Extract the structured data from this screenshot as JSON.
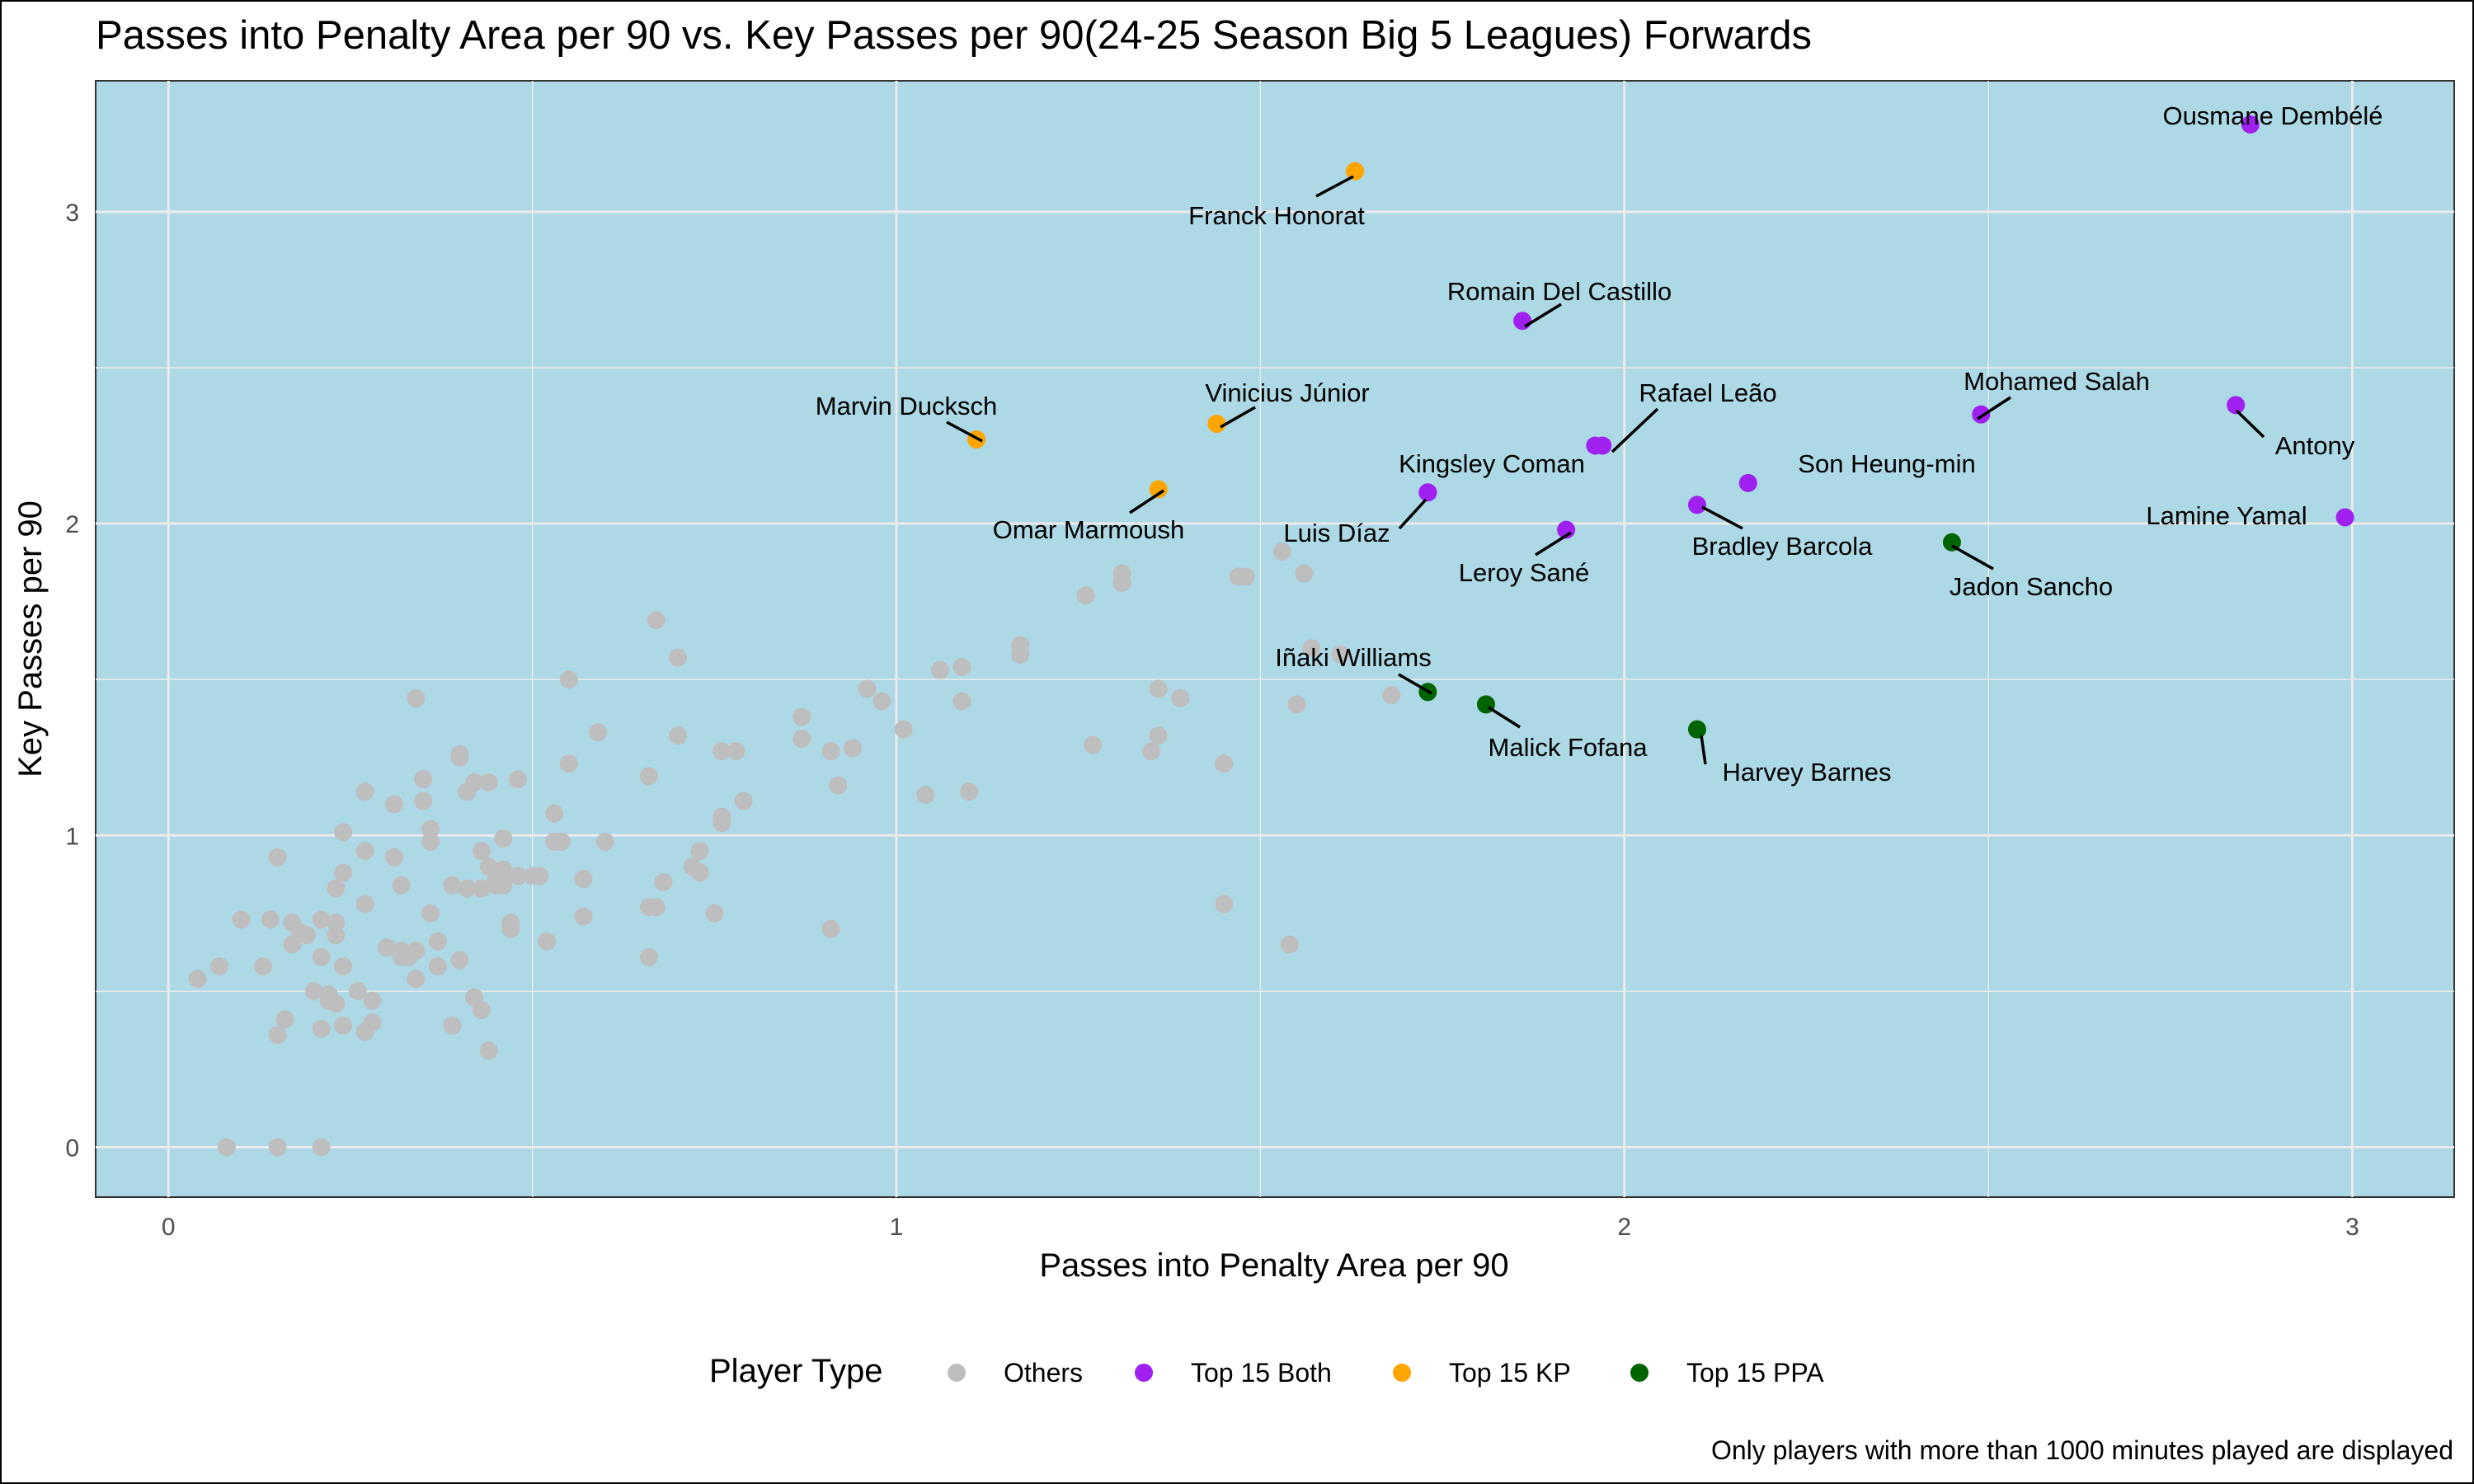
{
  "chart_data": {
    "type": "scatter",
    "title": "Passes into Penalty Area per 90 vs. Key Passes per 90(24-25 Season Big 5 Leagues) Forwards",
    "xlabel": "Passes into Penalty Area per 90",
    "ylabel": "Key Passes per 90",
    "xlim": [
      -0.1,
      3.14
    ],
    "ylim": [
      -0.16,
      3.42
    ],
    "x_ticks": [
      0,
      1,
      2,
      3
    ],
    "y_ticks": [
      0,
      1,
      2,
      3
    ],
    "grid": true,
    "panel_background": "#add8e6",
    "legend": {
      "title": "Player Type",
      "position": "bottom",
      "entries": [
        {
          "label": "Others",
          "color": "#bebebe"
        },
        {
          "label": "Top 15 Both",
          "color": "#a020f0"
        },
        {
          "label": "Top 15 KP",
          "color": "#ffa500"
        },
        {
          "label": "Top 15 PPA",
          "color": "#006400"
        }
      ]
    },
    "caption": "Only players with more than 1000 minutes played are displayed",
    "highlighted": [
      {
        "name": "Ousmane Dembélé",
        "x": 2.86,
        "y": 3.28,
        "group": "Top 15 Both"
      },
      {
        "name": "Franck Honorat",
        "x": 1.63,
        "y": 3.13,
        "group": "Top 15 KP"
      },
      {
        "name": "Romain Del Castillo",
        "x": 1.86,
        "y": 2.65,
        "group": "Top 15 Both"
      },
      {
        "name": "Marvin Ducksch",
        "x": 1.11,
        "y": 2.27,
        "group": "Top 15 KP"
      },
      {
        "name": "Vinicius Júnior",
        "x": 1.44,
        "y": 2.32,
        "group": "Top 15 KP"
      },
      {
        "name": "Rafael Leão",
        "x": 1.97,
        "y": 2.25,
        "group": "Top 15 Both"
      },
      {
        "name": "Mohamed Salah",
        "x": 2.49,
        "y": 2.35,
        "group": "Top 15 Both"
      },
      {
        "name": "Antony",
        "x": 2.84,
        "y": 2.38,
        "group": "Top 15 Both"
      },
      {
        "name": "Kingsley Coman",
        "x": 1.73,
        "y": 2.1,
        "group": "Top 15 Both"
      },
      {
        "name": "Son Heung-min",
        "x": 2.17,
        "y": 2.13,
        "group": "Top 15 Both"
      },
      {
        "name": "Omar Marmoush",
        "x": 1.36,
        "y": 2.11,
        "group": "Top 15 KP"
      },
      {
        "name": "Luis Díaz",
        "x": 1.73,
        "y": 2.1,
        "group": "Top 15 Both"
      },
      {
        "name": "Leroy Sané",
        "x": 1.92,
        "y": 1.98,
        "group": "Top 15 Both"
      },
      {
        "name": "Bradley Barcola",
        "x": 2.1,
        "y": 2.06,
        "group": "Top 15 Both"
      },
      {
        "name": "Lamine Yamal",
        "x": 2.99,
        "y": 2.02,
        "group": "Top 15 Both"
      },
      {
        "name": "Jadon Sancho",
        "x": 2.45,
        "y": 1.94,
        "group": "Top 15 PPA"
      },
      {
        "name": "Iñaki Williams",
        "x": 1.73,
        "y": 1.46,
        "group": "Top 15 PPA"
      },
      {
        "name": "Malick Fofana",
        "x": 1.81,
        "y": 1.42,
        "group": "Top 15 PPA"
      },
      {
        "name": "Harvey Barnes",
        "x": 2.1,
        "y": 1.34,
        "group": "Top 15 PPA"
      }
    ],
    "extra_points": [
      {
        "x": 1.96,
        "y": 2.25,
        "group": "Top 15 Both"
      }
    ],
    "others": [
      [
        0.08,
        0.0
      ],
      [
        0.15,
        0.0
      ],
      [
        0.21,
        0.0
      ],
      [
        0.04,
        0.54
      ],
      [
        0.07,
        0.58
      ],
      [
        0.1,
        0.73
      ],
      [
        0.13,
        0.58
      ],
      [
        0.14,
        0.73
      ],
      [
        0.15,
        0.36
      ],
      [
        0.15,
        0.93
      ],
      [
        0.16,
        0.41
      ],
      [
        0.17,
        0.72
      ],
      [
        0.17,
        0.65
      ],
      [
        0.18,
        0.69
      ],
      [
        0.19,
        0.68
      ],
      [
        0.2,
        0.5
      ],
      [
        0.21,
        0.38
      ],
      [
        0.21,
        0.61
      ],
      [
        0.21,
        0.73
      ],
      [
        0.22,
        0.47
      ],
      [
        0.22,
        0.49
      ],
      [
        0.23,
        0.46
      ],
      [
        0.23,
        0.72
      ],
      [
        0.23,
        0.83
      ],
      [
        0.23,
        0.68
      ],
      [
        0.24,
        0.88
      ],
      [
        0.24,
        0.39
      ],
      [
        0.24,
        0.58
      ],
      [
        0.24,
        1.01
      ],
      [
        0.26,
        0.5
      ],
      [
        0.27,
        0.37
      ],
      [
        0.27,
        0.78
      ],
      [
        0.27,
        0.95
      ],
      [
        0.27,
        1.14
      ],
      [
        0.28,
        0.4
      ],
      [
        0.28,
        0.47
      ],
      [
        0.3,
        0.64
      ],
      [
        0.31,
        0.93
      ],
      [
        0.31,
        1.1
      ],
      [
        0.32,
        0.61
      ],
      [
        0.32,
        0.63
      ],
      [
        0.32,
        0.84
      ],
      [
        0.33,
        0.61
      ],
      [
        0.34,
        0.54
      ],
      [
        0.34,
        0.63
      ],
      [
        0.34,
        1.44
      ],
      [
        0.35,
        1.18
      ],
      [
        0.35,
        1.11
      ],
      [
        0.36,
        0.75
      ],
      [
        0.36,
        0.98
      ],
      [
        0.36,
        1.02
      ],
      [
        0.37,
        0.66
      ],
      [
        0.37,
        0.58
      ],
      [
        0.39,
        0.39
      ],
      [
        0.39,
        0.84
      ],
      [
        0.4,
        1.25
      ],
      [
        0.4,
        1.26
      ],
      [
        0.4,
        0.6
      ],
      [
        0.41,
        0.83
      ],
      [
        0.41,
        1.14
      ],
      [
        0.42,
        1.17
      ],
      [
        0.42,
        0.48
      ],
      [
        0.43,
        0.83
      ],
      [
        0.43,
        0.95
      ],
      [
        0.43,
        0.44
      ],
      [
        0.44,
        0.9
      ],
      [
        0.44,
        1.17
      ],
      [
        0.44,
        0.31
      ],
      [
        0.45,
        0.84
      ],
      [
        0.45,
        0.86
      ],
      [
        0.46,
        0.84
      ],
      [
        0.46,
        0.99
      ],
      [
        0.46,
        0.89
      ],
      [
        0.47,
        0.7
      ],
      [
        0.47,
        0.72
      ],
      [
        0.48,
        0.87
      ],
      [
        0.48,
        1.18
      ],
      [
        0.5,
        0.87
      ],
      [
        0.51,
        0.87
      ],
      [
        0.52,
        0.66
      ],
      [
        0.53,
        0.98
      ],
      [
        0.53,
        1.07
      ],
      [
        0.54,
        0.98
      ],
      [
        0.55,
        1.23
      ],
      [
        0.55,
        1.5
      ],
      [
        0.57,
        0.74
      ],
      [
        0.57,
        0.86
      ],
      [
        0.59,
        1.33
      ],
      [
        0.6,
        0.98
      ],
      [
        0.66,
        0.61
      ],
      [
        0.66,
        0.77
      ],
      [
        0.66,
        1.19
      ],
      [
        0.67,
        1.69
      ],
      [
        0.67,
        0.77
      ],
      [
        0.68,
        0.85
      ],
      [
        0.7,
        1.32
      ],
      [
        0.7,
        1.57
      ],
      [
        0.72,
        0.9
      ],
      [
        0.73,
        0.88
      ],
      [
        0.73,
        0.95
      ],
      [
        0.75,
        0.75
      ],
      [
        0.76,
        1.04
      ],
      [
        0.76,
        1.06
      ],
      [
        0.76,
        1.27
      ],
      [
        0.78,
        1.27
      ],
      [
        0.79,
        1.11
      ],
      [
        0.87,
        1.31
      ],
      [
        0.87,
        1.38
      ],
      [
        0.91,
        0.7
      ],
      [
        0.91,
        1.27
      ],
      [
        0.92,
        1.16
      ],
      [
        0.94,
        1.28
      ],
      [
        0.96,
        1.47
      ],
      [
        0.98,
        1.43
      ],
      [
        1.01,
        1.34
      ],
      [
        1.04,
        1.13
      ],
      [
        1.06,
        1.53
      ],
      [
        1.09,
        1.43
      ],
      [
        1.09,
        1.54
      ],
      [
        1.1,
        1.14
      ],
      [
        1.17,
        1.58
      ],
      [
        1.17,
        1.61
      ],
      [
        1.26,
        1.77
      ],
      [
        1.27,
        1.29
      ],
      [
        1.31,
        1.81
      ],
      [
        1.31,
        1.84
      ],
      [
        1.35,
        1.27
      ],
      [
        1.36,
        1.32
      ],
      [
        1.36,
        1.47
      ],
      [
        1.39,
        1.44
      ],
      [
        1.45,
        0.78
      ],
      [
        1.45,
        1.23
      ],
      [
        1.47,
        1.83
      ],
      [
        1.48,
        1.83
      ],
      [
        1.53,
        1.91
      ],
      [
        1.54,
        0.65
      ],
      [
        1.55,
        1.42
      ],
      [
        1.56,
        1.84
      ],
      [
        1.57,
        1.6
      ],
      [
        1.61,
        1.58
      ],
      [
        1.68,
        1.45
      ]
    ]
  }
}
